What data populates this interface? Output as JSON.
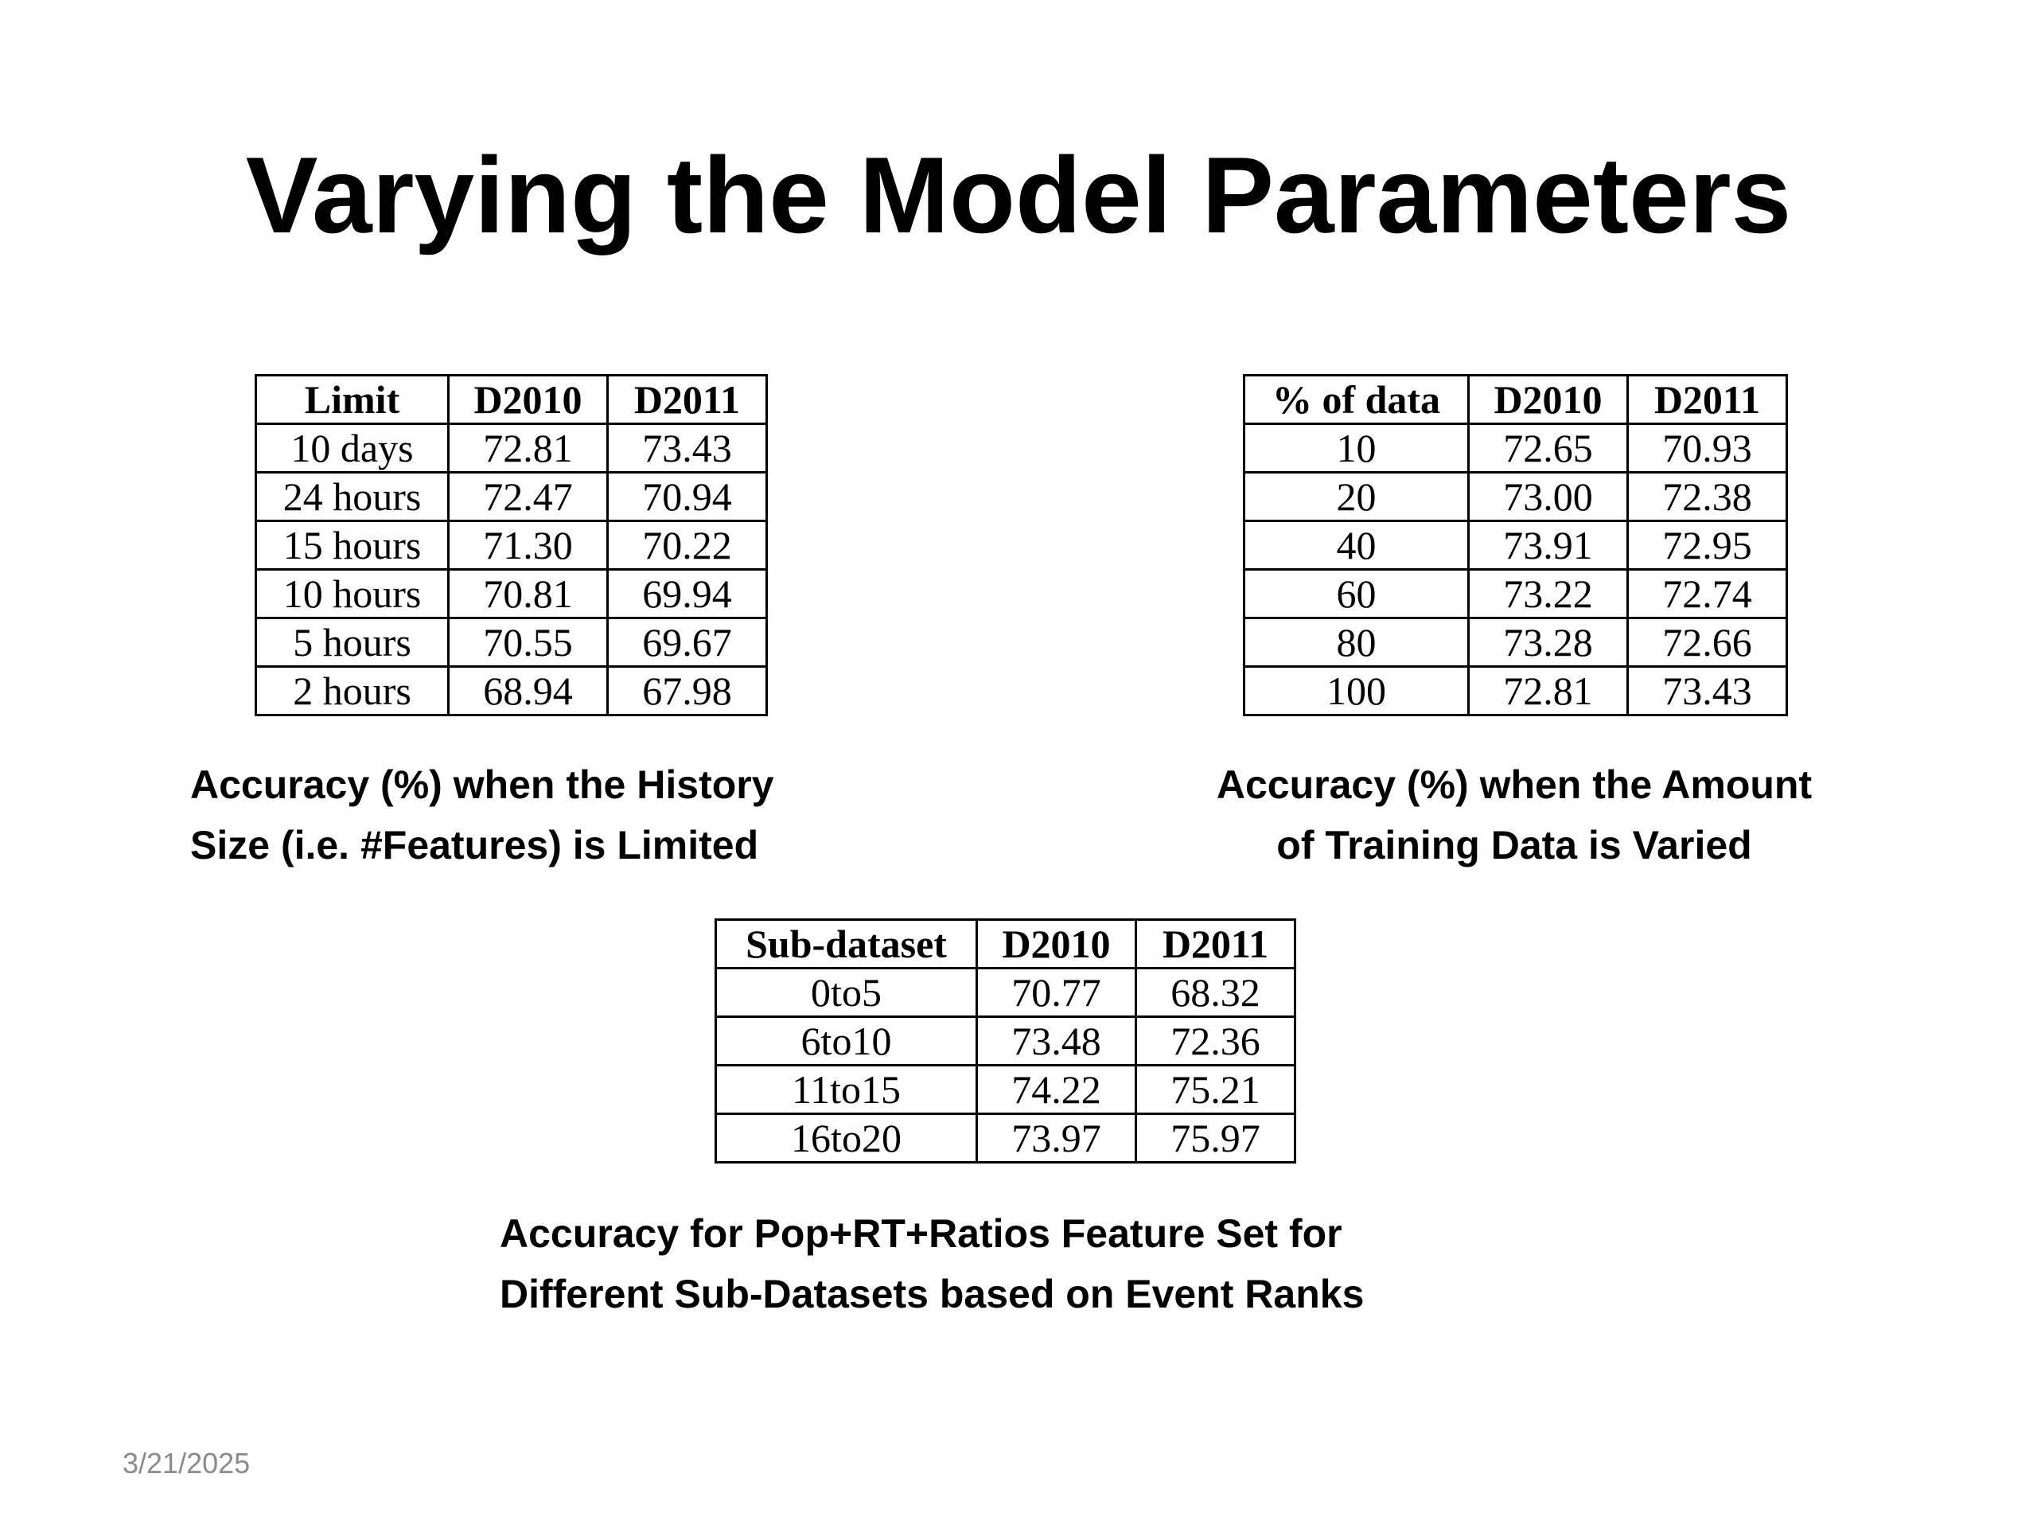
{
  "title": "Varying the Model Parameters",
  "tables": [
    {
      "header": [
        "Limit",
        "D2010",
        "D2011"
      ],
      "rows": [
        [
          "10 days",
          "72.81",
          "73.43"
        ],
        [
          "24 hours",
          "72.47",
          "70.94"
        ],
        [
          "15 hours",
          "71.30",
          "70.22"
        ],
        [
          "10 hours",
          "70.81",
          "69.94"
        ],
        [
          "5 hours",
          "70.55",
          "69.67"
        ],
        [
          "2 hours",
          "68.94",
          "67.98"
        ]
      ],
      "caption": [
        "Accuracy (%) when the History",
        "Size (i.e. #Features) is Limited"
      ]
    },
    {
      "header": [
        "% of data",
        "D2010",
        "D2011"
      ],
      "rows": [
        [
          "10",
          "72.65",
          "70.93"
        ],
        [
          "20",
          "73.00",
          "72.38"
        ],
        [
          "40",
          "73.91",
          "72.95"
        ],
        [
          "60",
          "73.22",
          "72.74"
        ],
        [
          "80",
          "73.28",
          "72.66"
        ],
        [
          "100",
          "72.81",
          "73.43"
        ]
      ],
      "caption": [
        "Accuracy (%) when the Amount",
        "of Training Data is Varied"
      ]
    },
    {
      "header": [
        "Sub-dataset",
        "D2010",
        "D2011"
      ],
      "rows": [
        [
          "0to5",
          "70.77",
          "68.32"
        ],
        [
          "6to10",
          "73.48",
          "72.36"
        ],
        [
          "11to15",
          "74.22",
          "75.21"
        ],
        [
          "16to20",
          "73.97",
          "75.97"
        ]
      ],
      "caption": [
        "Accuracy for Pop+RT+Ratios Feature Set for",
        "Different Sub-Datasets based on Event Ranks"
      ]
    }
  ],
  "footer": {
    "date": "3/21/2025"
  }
}
